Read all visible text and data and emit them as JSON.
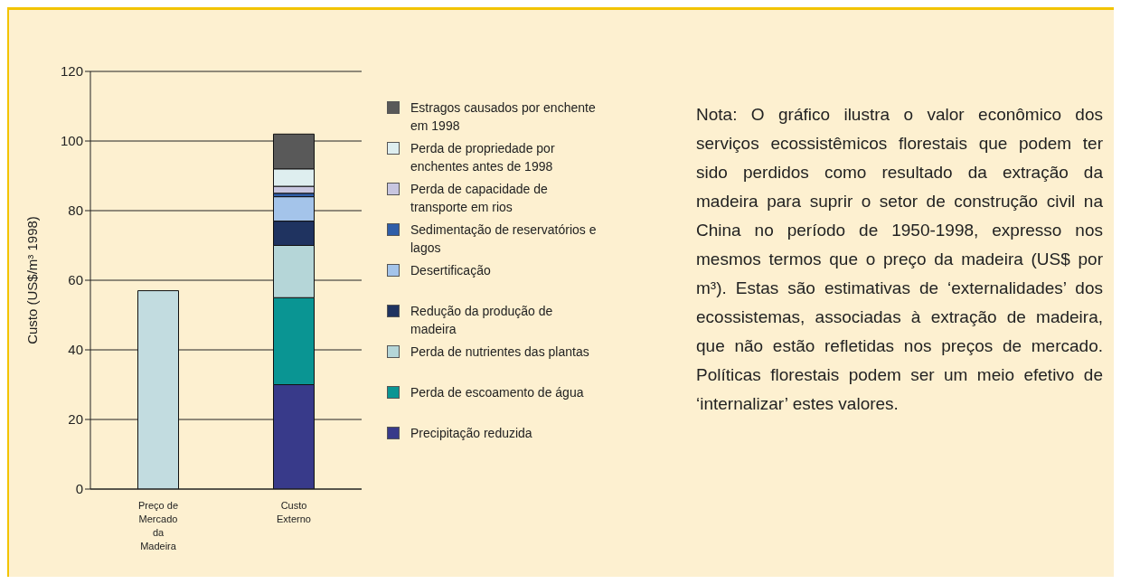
{
  "chart_data": {
    "type": "bar",
    "ylabel": "Custo (US$/m³ 1998)",
    "categories": [
      "Preço de Mercado da Madeira",
      "Custo Externo"
    ],
    "series": [
      {
        "color": "#c2dce0",
        "values": [
          57,
          null
        ]
      },
      {
        "name": "Precipitação reduzida",
        "color": "#383a8a",
        "values": [
          null,
          30
        ]
      },
      {
        "name": "Perda de escoamento de água",
        "color": "#0a9593",
        "values": [
          null,
          25
        ]
      },
      {
        "name": "Perda de nutrientes das plantas",
        "color": "#b5d6d8",
        "values": [
          null,
          15
        ]
      },
      {
        "name": "Redução da produção de madeira",
        "color": "#1f3360",
        "values": [
          null,
          7
        ]
      },
      {
        "name": "Desertificação",
        "color": "#a4c4ea",
        "values": [
          null,
          7
        ]
      },
      {
        "name": "Sedimentação de reservatórios e lagos",
        "color": "#2f5ea8",
        "values": [
          null,
          1
        ]
      },
      {
        "name": "Perda de capacidade de transporte em rios",
        "color": "#c8c6e0",
        "values": [
          null,
          2
        ]
      },
      {
        "name": "Perda de propriedade por enchentes antes de 1998",
        "color": "#deeeef",
        "values": [
          null,
          5
        ]
      },
      {
        "name": "Estragos causados por enchente em 1998",
        "color": "#595959",
        "values": [
          null,
          10
        ]
      }
    ],
    "stacked": true,
    "ylim": [
      0,
      120
    ],
    "yticks": [
      0,
      20,
      40,
      60,
      80,
      100,
      120
    ],
    "grid": "y",
    "legend": "right",
    "annotations": [
      "Nota: O gráfico ilustra o valor econômico dos serviços ecossistêmicos florestais que podem ter sido perdidos como resultado da extração da madeira para suprir o setor de construção civil na China no período de 1950-1998, expresso nos mesmos termos que o preço da madeira (US$ por m³). Estas são estimativas de ‘externalidades’ dos ecossistemas, associadas à extração de madeira, que não estão refletidas nos preços de mercado. Políticas florestais podem ser um meio efetivo de ‘internalizar’ estes valores."
    ]
  }
}
